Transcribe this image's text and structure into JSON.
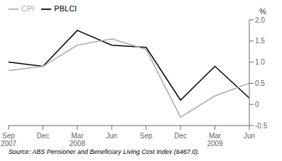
{
  "chart_data": {
    "type": "line",
    "y_label": "%",
    "categories": [
      "Sep\n2007",
      "Dec",
      "Mar\n2008",
      "Jun",
      "Sep",
      "Dec",
      "Mar\n2009",
      "Jun"
    ],
    "series": [
      {
        "name": "PBLCI",
        "color": "#000000",
        "values": [
          1.0,
          0.9,
          1.75,
          1.4,
          1.35,
          0.1,
          0.9,
          0.15
        ]
      },
      {
        "name": "CPI",
        "color": "#aaaaaa",
        "values": [
          0.8,
          0.9,
          1.4,
          1.55,
          1.3,
          -0.3,
          0.2,
          0.5
        ]
      }
    ],
    "ylim": [
      -0.5,
      2.0
    ],
    "yticks": [
      -0.5,
      0,
      0.5,
      {
        "value": 1,
        "label": "1.0"
      },
      1.5,
      {
        "value": 2,
        "label": "2.0"
      }
    ],
    "legend": "upper left",
    "grid": false,
    "annotations": [
      "Source: ABS Pensioner and Beneficiary Living Cost Index (6467.0)."
    ]
  }
}
